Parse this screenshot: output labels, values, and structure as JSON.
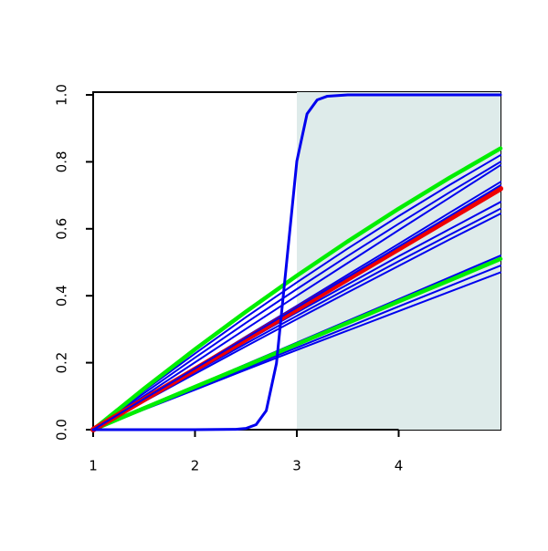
{
  "chart_data": {
    "type": "line",
    "xlim": [
      1,
      5
    ],
    "ylim": [
      0,
      1
    ],
    "xticks": [
      1,
      2,
      3,
      4
    ],
    "yticks": [
      {
        "value": 0,
        "label": "0.0"
      },
      0.2,
      0.4,
      0.6,
      0.8,
      {
        "value": 1,
        "label": "1.0"
      }
    ],
    "shade": {
      "xlim": [
        3,
        5
      ],
      "color": "#deebea"
    },
    "series": [
      {
        "color": "#0000ee",
        "width": 2,
        "x": [
          1,
          1.5,
          2,
          2.5,
          3,
          3.5,
          4,
          4.5,
          5
        ],
        "values": [
          0,
          0.116,
          0.2275,
          0.336,
          0.44,
          0.541,
          0.638,
          0.731,
          0.82
        ]
      },
      {
        "color": "#0000ee",
        "width": 2,
        "x": [
          1,
          1.5,
          2,
          2.5,
          3,
          3.5,
          4,
          4.5,
          5
        ],
        "values": [
          0,
          0.109,
          0.215,
          0.319,
          0.42,
          0.519,
          0.615,
          0.709,
          0.8
        ]
      },
      {
        "color": "#0000ee",
        "width": 2,
        "x": [
          1,
          1.5,
          2,
          2.5,
          3,
          3.5,
          4,
          4.5,
          5
        ],
        "values": [
          0,
          0.101,
          0.201,
          0.301,
          0.4,
          0.498,
          0.596,
          0.693,
          0.79
        ]
      },
      {
        "color": "#0000ee",
        "width": 2,
        "x": [
          1,
          1.5,
          2,
          2.5,
          3,
          3.5,
          4,
          4.5,
          5
        ],
        "values": [
          0,
          0.093,
          0.185,
          0.278,
          0.37,
          0.463,
          0.555,
          0.648,
          0.74
        ]
      },
      {
        "color": "#0000ee",
        "width": 2,
        "x": [
          1,
          1.5,
          2,
          2.5,
          3,
          3.5,
          4,
          4.5,
          5
        ],
        "values": [
          0,
          0.089,
          0.178,
          0.264,
          0.35,
          0.434,
          0.518,
          0.599,
          0.68
        ]
      },
      {
        "color": "#0000ee",
        "width": 2,
        "x": [
          1,
          1.5,
          2,
          2.5,
          3,
          3.5,
          4,
          4.5,
          5
        ],
        "values": [
          0,
          0.087,
          0.173,
          0.257,
          0.34,
          0.422,
          0.503,
          0.582,
          0.66
        ]
      },
      {
        "color": "#0000ee",
        "width": 2,
        "x": [
          1,
          1.5,
          2,
          2.5,
          3,
          3.5,
          4,
          4.5,
          5
        ],
        "values": [
          0,
          0.084,
          0.167,
          0.249,
          0.33,
          0.41,
          0.489,
          0.568,
          0.645
        ]
      },
      {
        "color": "#0000ee",
        "width": 2,
        "x": [
          1,
          1.5,
          2,
          2.5,
          3,
          3.5,
          4,
          4.5,
          5
        ],
        "values": [
          0,
          0.065,
          0.13,
          0.195,
          0.26,
          0.325,
          0.39,
          0.455,
          0.52
        ]
      },
      {
        "color": "#0000ee",
        "width": 2,
        "x": [
          1,
          1.5,
          2,
          2.5,
          3,
          3.5,
          4,
          4.5,
          5
        ],
        "values": [
          0,
          0.061,
          0.123,
          0.184,
          0.245,
          0.306,
          0.368,
          0.429,
          0.49
        ]
      },
      {
        "color": "#0000ee",
        "width": 2,
        "x": [
          1,
          1.5,
          2,
          2.5,
          3,
          3.5,
          4,
          4.5,
          5
        ],
        "values": [
          0,
          0.06,
          0.119,
          0.179,
          0.238,
          0.296,
          0.354,
          0.412,
          0.47
        ]
      },
      {
        "color": "#00ee00",
        "width": 4.5,
        "x": [
          1,
          1.5,
          2,
          2.5,
          3,
          3.5,
          4,
          4.5,
          5
        ],
        "values": [
          0,
          0.1225,
          0.24,
          0.3525,
          0.46,
          0.5625,
          0.66,
          0.7525,
          0.84
        ]
      },
      {
        "color": "#00ee00",
        "width": 4.5,
        "x": [
          1,
          1.5,
          2,
          2.5,
          3,
          3.5,
          4,
          4.5,
          5
        ],
        "values": [
          0,
          0.064,
          0.128,
          0.191,
          0.255,
          0.319,
          0.383,
          0.446,
          0.51
        ]
      },
      {
        "color": "#ee0000",
        "width": 6,
        "x": [
          1,
          1.5,
          2,
          2.5,
          3,
          3.5,
          4,
          4.5,
          5
        ],
        "values": [
          0,
          0.09,
          0.18,
          0.27,
          0.36,
          0.45,
          0.54,
          0.63,
          0.72
        ]
      },
      {
        "color": "#0000ee",
        "width": 2,
        "x": [
          1,
          1.5,
          2,
          2.5,
          3,
          3.5,
          4,
          4.5,
          5
        ],
        "values": [
          0,
          0.092,
          0.183,
          0.274,
          0.365,
          0.456,
          0.547,
          0.638,
          0.73
        ]
      },
      {
        "color": "#0000ee",
        "width": 3,
        "x": [
          1,
          2,
          2.4,
          2.5,
          2.6,
          2.7,
          2.8,
          2.9,
          3,
          3.1,
          3.2,
          3.3,
          3.5,
          5
        ],
        "values": [
          0,
          0,
          0.001,
          0.0037,
          0.015,
          0.057,
          0.198,
          0.5,
          0.802,
          0.943,
          0.985,
          0.996,
          1,
          1
        ]
      }
    ]
  }
}
